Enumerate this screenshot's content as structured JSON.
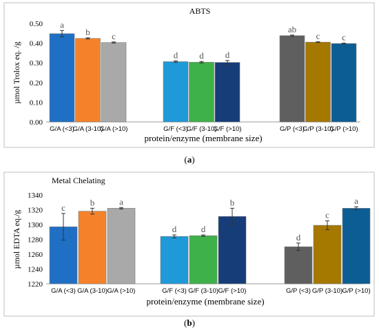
{
  "chart_data": [
    {
      "type": "bar",
      "title": "ABTS",
      "ylabel": "µmol Trolox eq. /g",
      "xlabel": "protein/enzyme (membrane size)",
      "ylim": [
        0,
        0.5
      ],
      "yticks": [
        "0.00",
        "0.10",
        "0.20",
        "0.30",
        "0.40",
        "0.50"
      ],
      "grid": false,
      "panel_label": "a",
      "groups": [
        {
          "bars": [
            {
              "label": "G/A (<3)",
              "value": 0.448,
              "err": 0.016,
              "letter": "a",
              "color": "#1f6fc5"
            },
            {
              "label": "G/A (3-10)",
              "value": 0.424,
              "err": 0.003,
              "letter": "b",
              "color": "#f5822a"
            },
            {
              "label": "G/A (>10)",
              "value": 0.403,
              "err": 0.003,
              "letter": "c",
              "color": "#a9a9a9"
            }
          ]
        },
        {
          "bars": [
            {
              "label": "G/F (<3)",
              "value": 0.306,
              "err": 0.004,
              "letter": "d",
              "color": "#1e9ad9"
            },
            {
              "label": "G/F (3-10)",
              "value": 0.303,
              "err": 0.004,
              "letter": "d",
              "color": "#3fb14a"
            },
            {
              "label": "G/F (>10)",
              "value": 0.302,
              "err": 0.01,
              "letter": "d",
              "color": "#163d78"
            }
          ]
        },
        {
          "bars": [
            {
              "label": "G/P (<3)",
              "value": 0.438,
              "err": 0.003,
              "letter": "ab",
              "color": "#5f5f5f"
            },
            {
              "label": "G/P (3-10)",
              "value": 0.405,
              "err": 0.002,
              "letter": "c",
              "color": "#a57800"
            },
            {
              "label": "G/P (>10)",
              "value": 0.398,
              "err": 0.002,
              "letter": "c",
              "color": "#0d5d95"
            }
          ]
        }
      ]
    },
    {
      "type": "bar",
      "title": "Metal Chelating",
      "ylabel": "µmol EDTA eq./g",
      "xlabel": "protein/enzyme (membrane size)",
      "ylim": [
        1220,
        1340
      ],
      "yticks": [
        "1220",
        "1240",
        "1260",
        "1280",
        "1300",
        "1320",
        "1340"
      ],
      "grid": false,
      "panel_label": "b",
      "groups": [
        {
          "bars": [
            {
              "label": "G/A (<3)",
              "value": 1297,
              "err": 18,
              "letter": "c",
              "color": "#1f6fc5"
            },
            {
              "label": "G/A (3-10)",
              "value": 1318,
              "err": 4,
              "letter": "b",
              "color": "#f5822a"
            },
            {
              "label": "G/A (>10)",
              "value": 1322,
              "err": 1,
              "letter": "a",
              "color": "#a9a9a9"
            }
          ]
        },
        {
          "bars": [
            {
              "label": "G/F (<3)",
              "value": 1284,
              "err": 2,
              "letter": "d",
              "color": "#1e9ad9"
            },
            {
              "label": "G/F (3-10)",
              "value": 1285,
              "err": 1,
              "letter": "d",
              "color": "#3fb14a"
            },
            {
              "label": "G/F (>10)",
              "value": 1311,
              "err": 11,
              "letter": "b",
              "color": "#163d78"
            }
          ]
        },
        {
          "bars": [
            {
              "label": "G/P (<3)",
              "value": 1270,
              "err": 5,
              "letter": "d",
              "color": "#5f5f5f"
            },
            {
              "label": "G/P (3-10)",
              "value": 1299,
              "err": 6,
              "letter": "c",
              "color": "#a57800"
            },
            {
              "label": "G/P (>10)",
              "value": 1322,
              "err": 2,
              "letter": "a",
              "color": "#0d5d95"
            }
          ]
        }
      ]
    }
  ]
}
